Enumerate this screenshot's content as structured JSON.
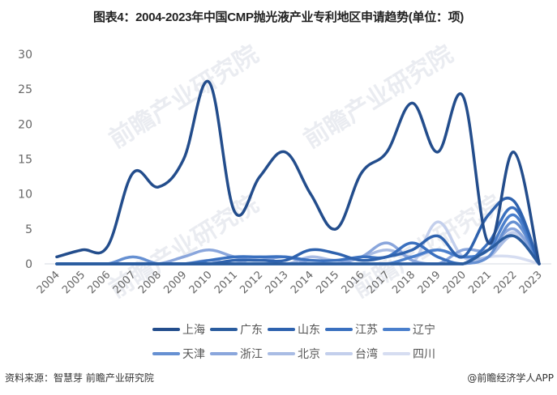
{
  "title": "图表4：2004-2023年中国CMP抛光液产业专利地区申请趋势(单位：项)",
  "footer": {
    "source": "资料来源：智慧芽 前瞻产业研究院",
    "credit": "@前瞻经济学人APP"
  },
  "watermark": "前瞻产业研究院",
  "chart_data": {
    "type": "line",
    "title": "图表4：2004-2023年中国CMP抛光液产业专利地区申请趋势(单位：项)",
    "xlabel": "",
    "ylabel": "",
    "ylim": [
      0,
      30
    ],
    "yticks": [
      0,
      5,
      10,
      15,
      20,
      25,
      30
    ],
    "grid": false,
    "legend_position": "bottom",
    "smooth": true,
    "categories": [
      "2004",
      "2005",
      "2006",
      "2007",
      "2008",
      "2009",
      "2010",
      "2011",
      "2012",
      "2013",
      "2014",
      "2015",
      "2016",
      "2017",
      "2018",
      "2019",
      "2020",
      "2021",
      "2022",
      "2023"
    ],
    "series": [
      {
        "name": "上海",
        "color": "#234d8c",
        "values": [
          1,
          2,
          2.5,
          13,
          11,
          15,
          26,
          7.5,
          12.5,
          16,
          10,
          5,
          13,
          16,
          23,
          16,
          24,
          3,
          16,
          0
        ]
      },
      {
        "name": "广东",
        "color": "#2a5c9e",
        "values": [
          0,
          0,
          0,
          0,
          0,
          0,
          0,
          0,
          0,
          0,
          0,
          0,
          0,
          0,
          0,
          0,
          0,
          2,
          4,
          0
        ]
      },
      {
        "name": "山东",
        "color": "#2e62ae",
        "values": [
          0,
          0,
          0,
          0,
          0,
          0,
          0,
          0.5,
          0.5,
          0.5,
          2,
          1.5,
          0.5,
          1,
          2,
          4,
          1,
          7,
          9,
          0
        ]
      },
      {
        "name": "江苏",
        "color": "#3a70bf",
        "values": [
          0,
          0,
          0,
          0,
          0,
          0,
          0.5,
          1,
          1,
          1,
          0.5,
          0.5,
          1,
          1,
          3,
          1,
          0,
          3,
          8,
          0
        ]
      },
      {
        "name": "辽宁",
        "color": "#4a7fcc",
        "values": [
          0,
          0,
          0,
          0,
          0,
          0,
          0,
          0,
          0,
          0,
          0,
          0,
          0,
          0,
          1,
          2,
          1,
          2,
          7,
          0
        ]
      },
      {
        "name": "天津",
        "color": "#6690d2",
        "values": [
          0,
          0,
          0,
          1,
          0,
          0,
          0,
          0,
          0,
          0,
          0,
          0,
          0,
          0,
          0,
          0,
          0,
          1,
          6,
          0
        ]
      },
      {
        "name": "浙江",
        "color": "#8aa6dc",
        "values": [
          0,
          0,
          0,
          0,
          0,
          1,
          2,
          1,
          0.5,
          1,
          0,
          0,
          1,
          3,
          0.5,
          0,
          2,
          2,
          5,
          0
        ]
      },
      {
        "name": "北京",
        "color": "#a9bce4",
        "values": [
          0,
          0,
          0,
          0,
          0,
          0,
          0.5,
          0,
          1,
          0,
          1,
          0.5,
          1,
          2,
          1,
          2,
          1,
          1,
          4,
          0
        ]
      },
      {
        "name": "台湾",
        "color": "#c3cfec",
        "values": [
          0,
          0,
          0,
          0,
          0,
          0,
          0,
          0,
          0,
          0,
          0,
          0,
          0,
          0,
          0,
          6,
          1,
          1,
          4.5,
          0
        ]
      },
      {
        "name": "四川",
        "color": "#d6ddf1",
        "values": [
          0,
          0,
          0,
          0,
          0,
          0,
          0,
          0,
          0,
          0,
          0,
          0,
          0,
          0,
          0,
          0,
          0,
          1,
          1,
          0
        ]
      }
    ]
  }
}
